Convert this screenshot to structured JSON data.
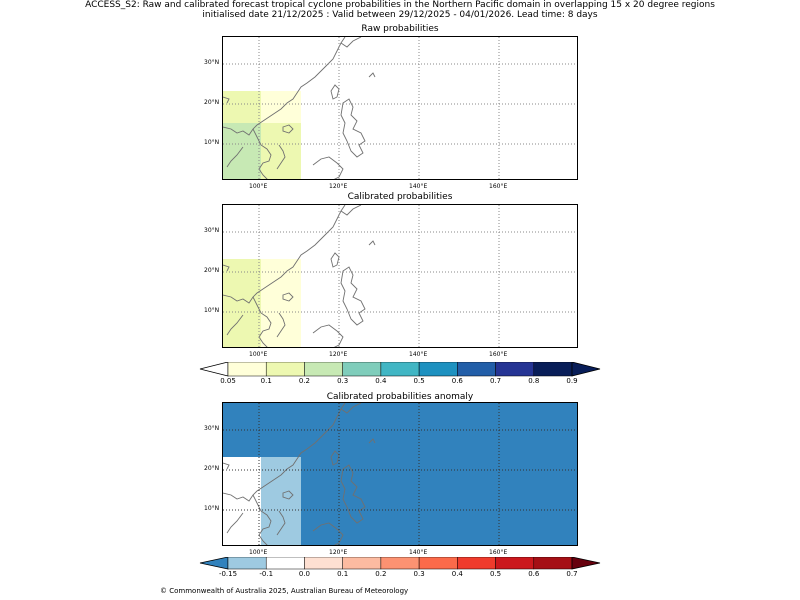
{
  "title_line1": "ACCESS_S2: Raw and calibrated forecast tropical cyclone probabilities in the Northern Pacific domain in overlapping 15 x 20 degree regions",
  "title_line2": "initialised date 21/12/2025 :  Valid between 29/12/2025 - 04/01/2026. Lead time: 8 days",
  "panels": {
    "raw": {
      "title": "Raw probabilities"
    },
    "calibrated": {
      "title": "Calibrated probabilities"
    },
    "anomaly": {
      "title": "Calibrated probabilities anomaly"
    }
  },
  "axes": {
    "lon_labels": [
      "100°E",
      "120°E",
      "140°E",
      "160°E"
    ],
    "lat_labels": [
      "30°N",
      "20°N",
      "10°N"
    ]
  },
  "colorbar_prob": {
    "ticks": [
      "0.05",
      "0.1",
      "0.2",
      "0.3",
      "0.4",
      "0.5",
      "0.6",
      "0.7",
      "0.8",
      "0.9"
    ],
    "colors": [
      "#ffffd9",
      "#edf8b1",
      "#c7e9b4",
      "#7fcdbb",
      "#41b6c4",
      "#1d91c0",
      "#225ea8",
      "#253494",
      "#081d58"
    ],
    "under_color": "#ffffff",
    "over_color": "#081d58"
  },
  "colorbar_anom": {
    "ticks": [
      "-0.15",
      "-0.1",
      "0.0",
      "0.1",
      "0.2",
      "0.3",
      "0.4",
      "0.5",
      "0.6",
      "0.7"
    ],
    "colors": [
      "#9ecae1",
      "#ffffff",
      "#fee0d2",
      "#fcbba1",
      "#fc9272",
      "#fb6a4a",
      "#ef3b2c",
      "#cb181d",
      "#a50f15"
    ],
    "under_color": "#3182bd",
    "over_color": "#67000d"
  },
  "map_colors": {
    "very_light_yellow": "#ffffd9",
    "light_yellow_green": "#edf8b1",
    "light_green": "#c7e9b4",
    "anomaly_blue": "#3182bd",
    "anomaly_light_blue": "#9ecae1"
  },
  "copyright": "© Commonwealth of Australia 2025, Australian Bureau of Meteorology"
}
